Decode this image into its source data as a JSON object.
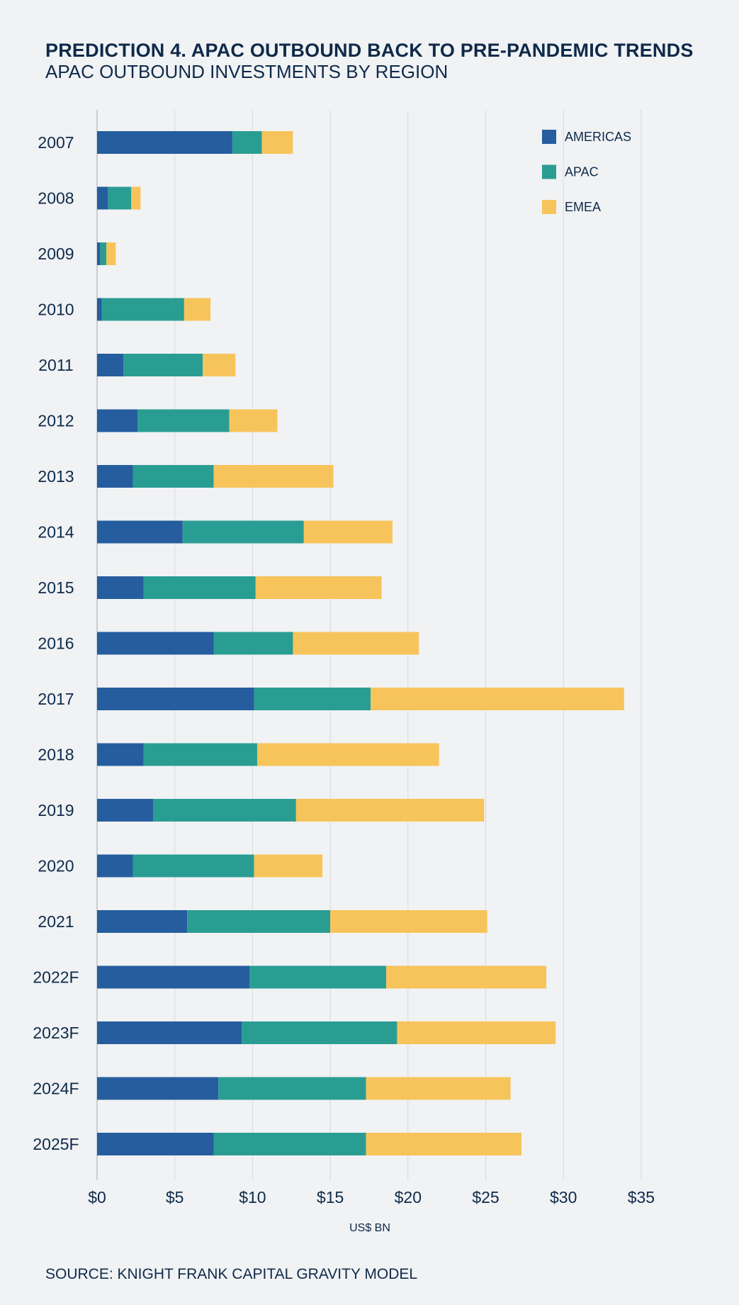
{
  "header": {
    "title": "PREDICTION 4. APAC OUTBOUND BACK TO PRE-PANDEMIC TRENDS",
    "subtitle": "APAC OUTBOUND INVESTMENTS BY REGION"
  },
  "footer": {
    "source": "SOURCE: KNIGHT FRANK CAPITAL GRAVITY MODEL"
  },
  "chart_data": {
    "type": "bar",
    "orientation": "horizontal",
    "stacked": true,
    "title": "APAC OUTBOUND INVESTMENTS BY REGION",
    "xlabel": "US$ BN",
    "ylabel": "",
    "xlim": [
      0,
      37
    ],
    "xticks": [
      0,
      5,
      10,
      15,
      20,
      25,
      30,
      35
    ],
    "xtick_labels": [
      "$0",
      "$5",
      "$10",
      "$15",
      "$20",
      "$25",
      "$30",
      "$35"
    ],
    "grid": true,
    "legend_position": "top-right",
    "categories": [
      "2007",
      "2008",
      "2009",
      "2010",
      "2011",
      "2012",
      "2013",
      "2014",
      "2015",
      "2016",
      "2017",
      "2018",
      "2019",
      "2020",
      "2021",
      "2022F",
      "2023F",
      "2024F",
      "2025F"
    ],
    "series": [
      {
        "name": "AMERICAS",
        "color": "#255d9e",
        "values": [
          8.7,
          0.7,
          0.2,
          0.3,
          1.7,
          2.6,
          2.3,
          5.5,
          3.0,
          7.5,
          10.1,
          3.0,
          3.6,
          2.3,
          5.8,
          9.8,
          9.3,
          7.8,
          7.5
        ]
      },
      {
        "name": "APAC",
        "color": "#2a9d93",
        "values": [
          1.9,
          1.5,
          0.4,
          5.3,
          5.1,
          5.9,
          5.2,
          7.8,
          7.2,
          5.1,
          7.5,
          7.3,
          9.2,
          7.8,
          9.2,
          8.8,
          10.0,
          9.5,
          9.8
        ]
      },
      {
        "name": "EMEA",
        "color": "#f7c45b",
        "values": [
          2.0,
          0.6,
          0.6,
          1.7,
          2.1,
          3.1,
          7.7,
          5.7,
          8.1,
          8.1,
          16.3,
          11.7,
          12.1,
          4.4,
          10.1,
          10.3,
          10.2,
          9.3,
          10.0
        ]
      }
    ]
  }
}
